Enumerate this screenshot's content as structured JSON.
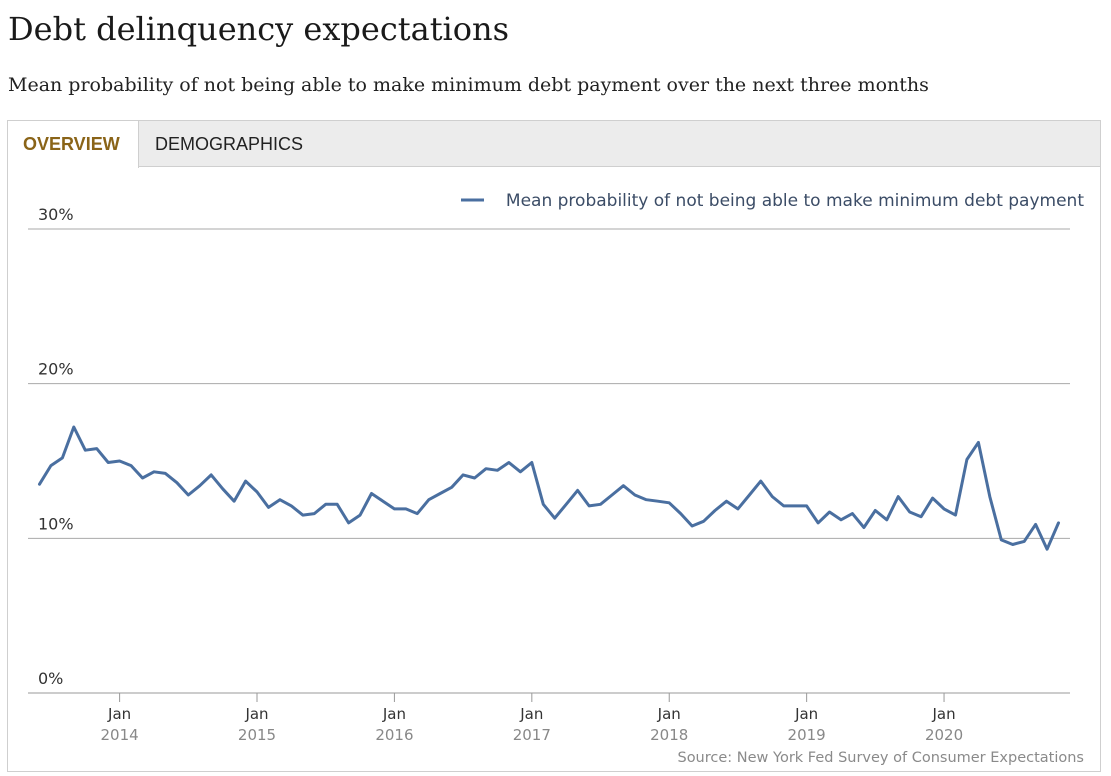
{
  "header": {
    "title": "Debt delinquency expectations",
    "subtitle": "Mean probability of not being able to make minimum debt payment over the next three months"
  },
  "tabs": [
    {
      "label": "OVERVIEW",
      "active": true
    },
    {
      "label": "DEMOGRAPHICS",
      "active": false
    }
  ],
  "colors": {
    "line": "#4a6fa0",
    "active_tab": "#8a6418",
    "gridline": "#aaaaaa"
  },
  "source": "Source: New York Fed Survey of Consumer Expectations",
  "chart_data": {
    "type": "line",
    "title": "",
    "xlabel": "",
    "ylabel": "",
    "ylim": [
      0,
      30
    ],
    "xlim": [
      "2013-05",
      "2020-12"
    ],
    "y_ticks": [
      {
        "value": 0,
        "label": "0%"
      },
      {
        "value": 10,
        "label": "10%"
      },
      {
        "value": 20,
        "label": "20%"
      },
      {
        "value": 30,
        "label": "30%"
      }
    ],
    "x_ticks": [
      {
        "date": "2014-01",
        "month": "Jan",
        "year": "2014"
      },
      {
        "date": "2015-01",
        "month": "Jan",
        "year": "2015"
      },
      {
        "date": "2016-01",
        "month": "Jan",
        "year": "2016"
      },
      {
        "date": "2017-01",
        "month": "Jan",
        "year": "2017"
      },
      {
        "date": "2018-01",
        "month": "Jan",
        "year": "2018"
      },
      {
        "date": "2019-01",
        "month": "Jan",
        "year": "2019"
      },
      {
        "date": "2020-01",
        "month": "Jan",
        "year": "2020"
      }
    ],
    "legend": {
      "position": "top-right"
    },
    "series": [
      {
        "name": "Mean probability of not being able to make minimum debt payment",
        "x": [
          "2013-06",
          "2013-07",
          "2013-08",
          "2013-09",
          "2013-10",
          "2013-11",
          "2013-12",
          "2014-01",
          "2014-02",
          "2014-03",
          "2014-04",
          "2014-05",
          "2014-06",
          "2014-07",
          "2014-08",
          "2014-09",
          "2014-10",
          "2014-11",
          "2014-12",
          "2015-01",
          "2015-02",
          "2015-03",
          "2015-04",
          "2015-05",
          "2015-06",
          "2015-07",
          "2015-08",
          "2015-09",
          "2015-10",
          "2015-11",
          "2015-12",
          "2016-01",
          "2016-02",
          "2016-03",
          "2016-04",
          "2016-05",
          "2016-06",
          "2016-07",
          "2016-08",
          "2016-09",
          "2016-10",
          "2016-11",
          "2016-12",
          "2017-01",
          "2017-02",
          "2017-03",
          "2017-04",
          "2017-05",
          "2017-06",
          "2017-07",
          "2017-08",
          "2017-09",
          "2017-10",
          "2017-11",
          "2017-12",
          "2018-01",
          "2018-02",
          "2018-03",
          "2018-04",
          "2018-05",
          "2018-06",
          "2018-07",
          "2018-08",
          "2018-09",
          "2018-10",
          "2018-11",
          "2018-12",
          "2019-01",
          "2019-02",
          "2019-03",
          "2019-04",
          "2019-05",
          "2019-06",
          "2019-07",
          "2019-08",
          "2019-09",
          "2019-10",
          "2019-11",
          "2019-12",
          "2020-01",
          "2020-02",
          "2020-03",
          "2020-04",
          "2020-05",
          "2020-06",
          "2020-07",
          "2020-08",
          "2020-09",
          "2020-10",
          "2020-11"
        ],
        "values": [
          13.5,
          14.7,
          15.2,
          17.2,
          15.7,
          15.8,
          14.9,
          15.0,
          14.7,
          13.9,
          14.3,
          14.2,
          13.6,
          12.8,
          13.4,
          14.1,
          13.2,
          12.4,
          13.7,
          13.0,
          12.0,
          12.5,
          12.1,
          11.5,
          11.6,
          12.2,
          12.2,
          11.0,
          11.5,
          12.9,
          12.4,
          11.9,
          11.9,
          11.6,
          12.5,
          12.9,
          13.3,
          14.1,
          13.9,
          14.5,
          14.4,
          14.9,
          14.3,
          14.9,
          12.2,
          11.3,
          12.2,
          13.1,
          12.1,
          12.2,
          12.8,
          13.4,
          12.8,
          12.5,
          12.4,
          12.3,
          11.6,
          10.8,
          11.1,
          11.8,
          12.4,
          11.9,
          12.8,
          13.7,
          12.7,
          12.1,
          12.1,
          12.1,
          11.0,
          11.7,
          11.2,
          11.6,
          10.7,
          11.8,
          11.2,
          12.7,
          11.7,
          11.4,
          12.6,
          11.9,
          11.5,
          15.1,
          16.2,
          12.7,
          9.9,
          9.6,
          9.8,
          10.9,
          9.3,
          11.0
        ]
      }
    ]
  }
}
